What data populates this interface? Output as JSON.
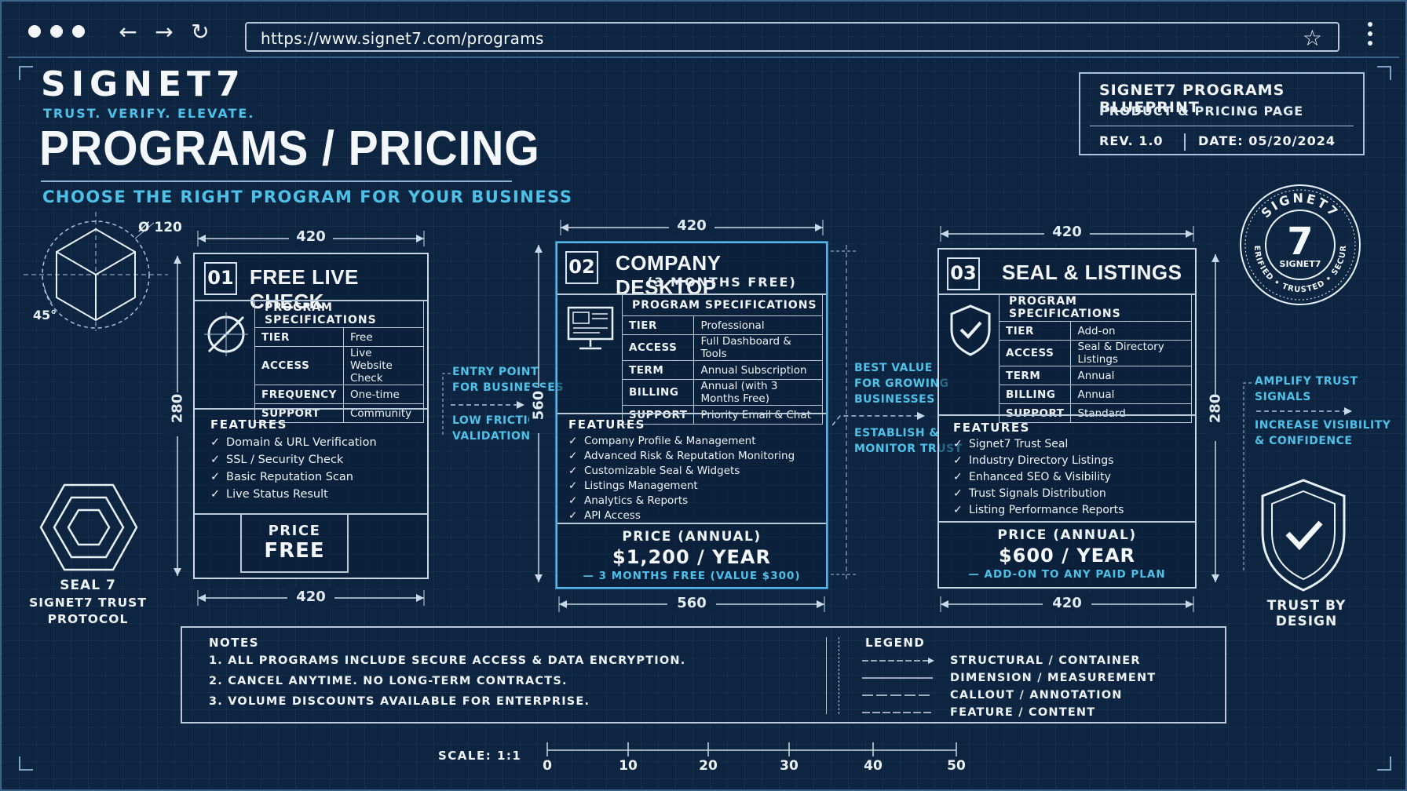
{
  "browser": {
    "url": "https://www.signet7.com/programs"
  },
  "brand": {
    "name": "SIGNET7",
    "tagline": "TRUST. VERIFY. ELEVATE."
  },
  "page": {
    "title": "PROGRAMS / PRICING",
    "subtitle": "CHOOSE THE RIGHT PROGRAM FOR YOUR BUSINESS"
  },
  "blueprint": {
    "title": "SIGNET7 PROGRAMS BLUEPRINT",
    "subtitle": "PRODUCT & PRICING PAGE",
    "rev": "REV. 1.0",
    "date": "DATE: 05/20/2024"
  },
  "diagram": {
    "diameter": "Ø 120",
    "angle": "45°"
  },
  "seal_left": {
    "line1": "SEAL 7",
    "line2": "SIGNET7 TRUST",
    "line3": "PROTOCOL"
  },
  "seal_right": {
    "top": "SIGNET7",
    "digit": "7",
    "inner": "SIGNET7",
    "ring_bottom": "VERIFIED • TRUSTED • SECURE",
    "caption": "TRUST BY DESIGN"
  },
  "programs": [
    {
      "number": "01",
      "title": "FREE LIVE CHECK",
      "subtitle": "",
      "specs_header": "PROGRAM SPECIFICATIONS",
      "specs": [
        {
          "key": "TIER",
          "value": "Free"
        },
        {
          "key": "ACCESS",
          "value": "Live Website Check"
        },
        {
          "key": "FREQUENCY",
          "value": "One-time"
        },
        {
          "key": "SUPPORT",
          "value": "Community"
        }
      ],
      "features_header": "FEATURES",
      "features": [
        "Domain & URL Verification",
        "SSL / Security Check",
        "Basic Reputation Scan",
        "Live Status Result"
      ],
      "price_label": "PRICE",
      "price_value": "FREE",
      "price_note": "",
      "dim_top": "420",
      "dim_bottom": "420",
      "dim_side": "280"
    },
    {
      "number": "02",
      "title": "COMPANY DESKTOP",
      "subtitle": "(3 MONTHS FREE)",
      "specs_header": "PROGRAM SPECIFICATIONS",
      "specs": [
        {
          "key": "TIER",
          "value": "Professional"
        },
        {
          "key": "ACCESS",
          "value": "Full Dashboard & Tools"
        },
        {
          "key": "TERM",
          "value": "Annual Subscription"
        },
        {
          "key": "BILLING",
          "value": "Annual (with 3 Months Free)"
        },
        {
          "key": "SUPPORT",
          "value": "Priority Email & Chat"
        }
      ],
      "features_header": "FEATURES",
      "features": [
        "Company Profile & Management",
        "Advanced Risk & Reputation Monitoring",
        "Customizable Seal & Widgets",
        "Listings Management",
        "Analytics & Reports",
        "API Access"
      ],
      "price_label": "PRICE (ANNUAL)",
      "price_value": "$1,200 / YEAR",
      "price_note": "— 3 MONTHS FREE (VALUE $300)",
      "dim_top": "420",
      "dim_bottom": "560",
      "dim_side": "560"
    },
    {
      "number": "03",
      "title": "SEAL & LISTINGS",
      "subtitle": "",
      "specs_header": "PROGRAM SPECIFICATIONS",
      "specs": [
        {
          "key": "TIER",
          "value": "Add-on"
        },
        {
          "key": "ACCESS",
          "value": "Seal & Directory Listings"
        },
        {
          "key": "TERM",
          "value": "Annual"
        },
        {
          "key": "BILLING",
          "value": "Annual"
        },
        {
          "key": "SUPPORT",
          "value": "Standard"
        }
      ],
      "features_header": "FEATURES",
      "features": [
        "Signet7 Trust Seal",
        "Industry Directory Listings",
        "Enhanced SEO & Visibility",
        "Trust Signals Distribution",
        "Listing Performance Reports"
      ],
      "price_label": "PRICE (ANNUAL)",
      "price_value": "$600 / YEAR",
      "price_note": "— ADD-ON TO ANY PAID PLAN",
      "dim_top": "420",
      "dim_bottom": "420",
      "dim_side": "280"
    }
  ],
  "callouts": {
    "c1a": [
      "ENTRY POINT",
      "FOR BUSINESSES"
    ],
    "c1b": [
      "LOW FRICTION",
      "VALIDATION"
    ],
    "c2a": [
      "BEST VALUE",
      "FOR GROWING",
      "BUSINESSES"
    ],
    "c2b": [
      "ESTABLISH &",
      "MONITOR TRUST"
    ],
    "c3a": [
      "AMPLIFY TRUST",
      "SIGNALS"
    ],
    "c3b": [
      "INCREASE VISIBILITY",
      "& CONFIDENCE"
    ]
  },
  "notes": {
    "header": "NOTES",
    "items": [
      "1.  ALL PROGRAMS INCLUDE SECURE ACCESS & DATA ENCRYPTION.",
      "2.  CANCEL ANYTIME. NO LONG-TERM CONTRACTS.",
      "3.  VOLUME DISCOUNTS AVAILABLE FOR ENTERPRISE."
    ]
  },
  "legend": {
    "header": "LEGEND",
    "items": [
      "STRUCTURAL / CONTAINER",
      "DIMENSION / MEASUREMENT",
      "CALLOUT / ANNOTATION",
      "FEATURE / CONTENT"
    ]
  },
  "scale": {
    "label": "SCALE:  1:1",
    "ticks": [
      "0",
      "10",
      "20",
      "30",
      "40",
      "50"
    ]
  },
  "colors": {
    "background": "#0d2540",
    "accent": "#4fc1e8",
    "line": "#b9cadb"
  }
}
